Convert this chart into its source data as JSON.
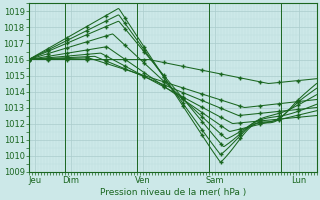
{
  "xlabel": "Pression niveau de la mer( hPa )",
  "xlim": [
    0,
    96
  ],
  "ylim": [
    1009,
    1019.5
  ],
  "yticks": [
    1009,
    1010,
    1011,
    1012,
    1013,
    1014,
    1015,
    1016,
    1017,
    1018,
    1019
  ],
  "xtick_positions": [
    2,
    14,
    38,
    62,
    90
  ],
  "xtick_labels": [
    "Jeu",
    "Dim",
    "Ven",
    "Sam",
    "Lun"
  ],
  "bg_color": "#cce8e8",
  "grid_major_color": "#aacccc",
  "grid_minor_color": "#bbdddd",
  "line_color": "#1a6620",
  "line_width": 0.75
}
